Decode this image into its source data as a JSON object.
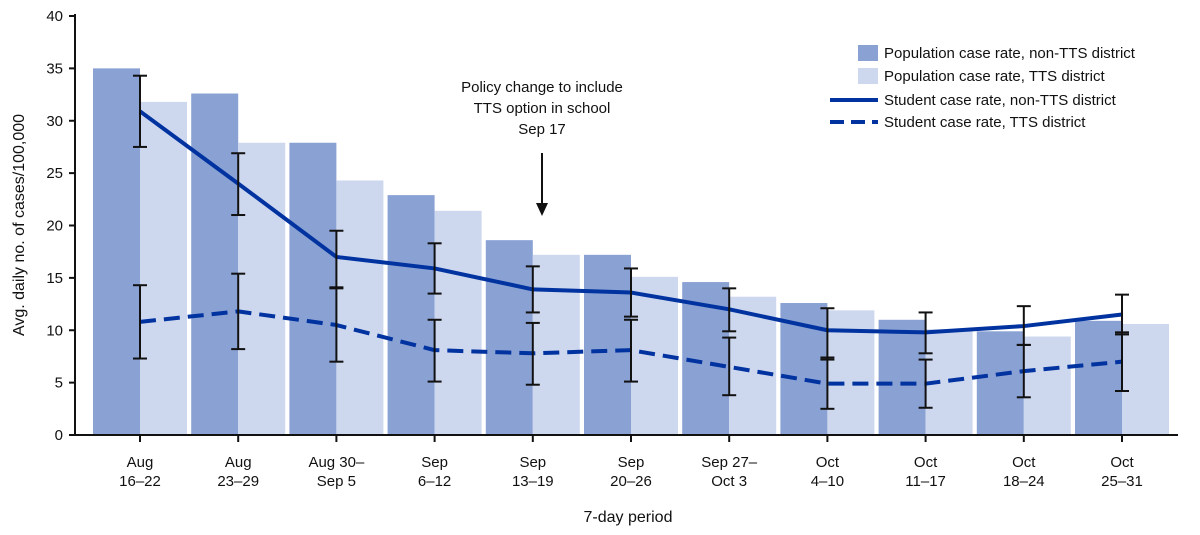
{
  "chart_data": {
    "type": "bar",
    "xlabel": "7-day period",
    "ylabel": "Avg. daily no. of cases/100,000",
    "ylim": [
      0,
      40
    ],
    "yticks": [
      0,
      5,
      10,
      15,
      20,
      25,
      30,
      35,
      40
    ],
    "grid": false,
    "legend_placement": "top-right",
    "categories": [
      [
        "Aug",
        "16–22"
      ],
      [
        "Aug",
        "23–29"
      ],
      [
        "Aug 30–",
        "Sep 5"
      ],
      [
        "Sep",
        "6–12"
      ],
      [
        "Sep",
        "13–19"
      ],
      [
        "Sep",
        "20–26"
      ],
      [
        "Sep 27–",
        "Oct 3"
      ],
      [
        "Oct",
        "4–10"
      ],
      [
        "Oct",
        "11–17"
      ],
      [
        "Oct",
        "18–24"
      ],
      [
        "Oct",
        "25–31"
      ]
    ],
    "series": [
      {
        "name": "Population case rate, non-TTS district",
        "kind": "bar",
        "color": "#8aa1d4",
        "values": [
          35.0,
          32.6,
          27.9,
          22.9,
          18.6,
          17.2,
          14.6,
          12.6,
          11.0,
          9.9,
          10.9
        ]
      },
      {
        "name": "Population case rate, TTS district",
        "kind": "bar",
        "color": "#cdd7ee",
        "values": [
          31.8,
          27.9,
          24.3,
          21.4,
          17.2,
          15.1,
          13.2,
          11.9,
          10.1,
          9.4,
          10.6
        ]
      },
      {
        "name": "Student case rate, non-TTS district",
        "kind": "line",
        "dash": false,
        "color": "#0033a0",
        "values": [
          30.9,
          24.0,
          17.0,
          15.9,
          13.9,
          13.6,
          12.0,
          10.0,
          9.8,
          10.4,
          11.5
        ],
        "ci_low": [
          27.5,
          21.0,
          14.1,
          13.5,
          11.7,
          11.3,
          9.9,
          7.2,
          7.8,
          8.6,
          9.6
        ],
        "ci_high": [
          34.3,
          26.9,
          19.5,
          18.3,
          16.1,
          15.9,
          14.0,
          12.1,
          11.7,
          12.3,
          13.4
        ]
      },
      {
        "name": "Student case rate, TTS district",
        "kind": "line",
        "dash": true,
        "color": "#0033a0",
        "values": [
          10.8,
          11.8,
          10.5,
          8.1,
          7.8,
          8.1,
          6.5,
          4.9,
          4.9,
          6.1,
          7.0
        ],
        "ci_low": [
          7.3,
          8.2,
          7.0,
          5.1,
          4.8,
          5.1,
          3.8,
          2.5,
          2.6,
          3.6,
          4.2
        ],
        "ci_high": [
          14.3,
          15.4,
          14.0,
          11.0,
          10.7,
          11.0,
          9.3,
          7.4,
          7.2,
          8.6,
          9.8
        ]
      }
    ],
    "annotation": {
      "lines": [
        "Policy change to include",
        "TTS option in school",
        "Sep 17"
      ],
      "category_index": 4
    }
  }
}
